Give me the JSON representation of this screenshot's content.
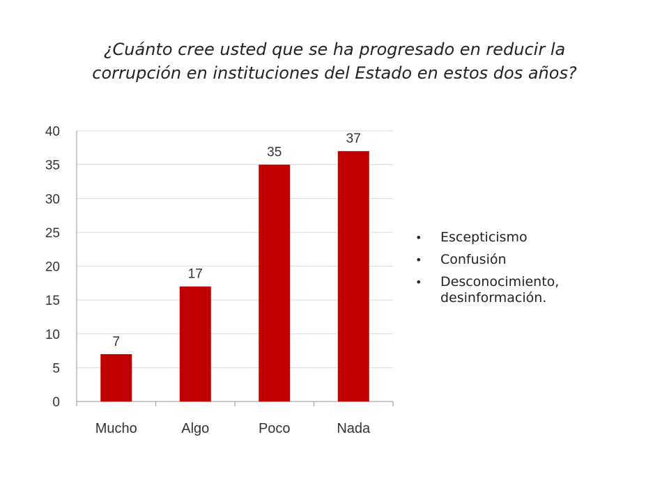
{
  "title_line1": "¿Cuánto cree usted que se ha progresado en reducir la",
  "title_line2": "corrupción en instituciones del Estado en estos dos años?",
  "chart_data": {
    "type": "bar",
    "categories": [
      "Mucho",
      "Algo",
      "Poco",
      "Nada"
    ],
    "values": [
      7,
      17,
      35,
      37
    ],
    "data_labels": [
      "7",
      "17",
      "35",
      "37"
    ],
    "ylim": [
      0,
      40
    ],
    "yticks": [
      "0",
      "5",
      "10",
      "15",
      "20",
      "25",
      "30",
      "35",
      "40"
    ],
    "grid": true,
    "bar_color": "#C00000",
    "title": "",
    "xlabel": "",
    "ylabel": ""
  },
  "bullets": [
    "Escepticismo",
    "Confusión",
    "Desconocimiento, desinformación."
  ],
  "bullet_symbol": "•"
}
